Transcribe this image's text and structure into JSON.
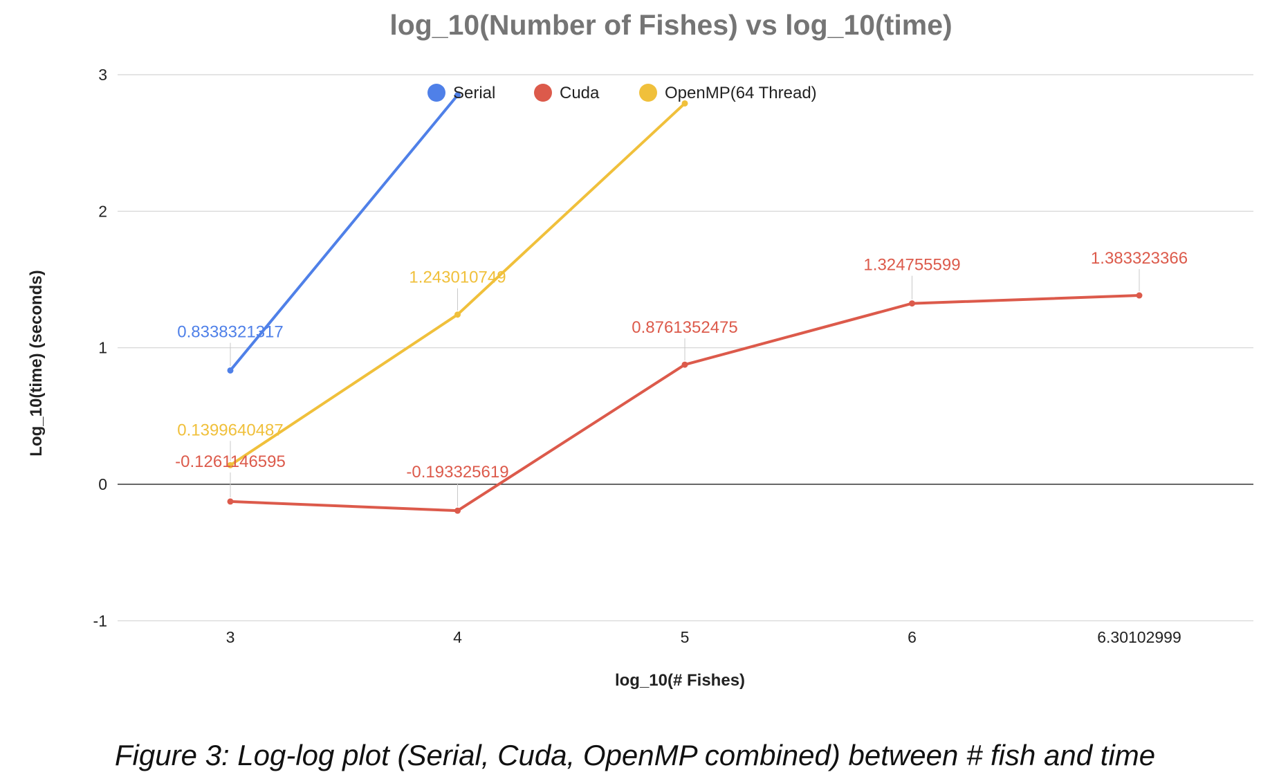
{
  "chart_data": {
    "type": "line",
    "title": "log_10(Number of Fishes) vs log_10(time)",
    "xlabel": "log_10(# Fishes)",
    "ylabel": "Log_10(time) (seconds)",
    "categories": [
      "3",
      "4",
      "5",
      "6",
      "6.30102999"
    ],
    "ylim": [
      -1,
      3
    ],
    "yticks": [
      -1,
      0,
      1,
      2,
      3
    ],
    "grid": true,
    "legend_position": "top",
    "series": [
      {
        "name": "Serial",
        "color": "#4f80e8",
        "values": [
          0.8338321317,
          2.85,
          null,
          null,
          null
        ],
        "labels": [
          "0.8338321317",
          null,
          null,
          null,
          null
        ]
      },
      {
        "name": "Cuda",
        "color": "#dc5a4b",
        "values": [
          -0.1261146595,
          -0.193325619,
          0.8761352475,
          1.324755599,
          1.383323366
        ],
        "labels": [
          "-0.1261146595",
          "-0.193325619",
          "0.8761352475",
          "1.324755599",
          "1.383323366"
        ]
      },
      {
        "name": "OpenMP(64 Thread)",
        "color": "#f0c03b",
        "values": [
          0.1399640487,
          1.243010749,
          2.79,
          null,
          null
        ],
        "labels": [
          "0.1399640487",
          "1.243010749",
          null,
          null,
          null
        ]
      }
    ]
  },
  "caption": "Figure 3: Log-log plot (Serial, Cuda, OpenMP combined) between # fish and time"
}
